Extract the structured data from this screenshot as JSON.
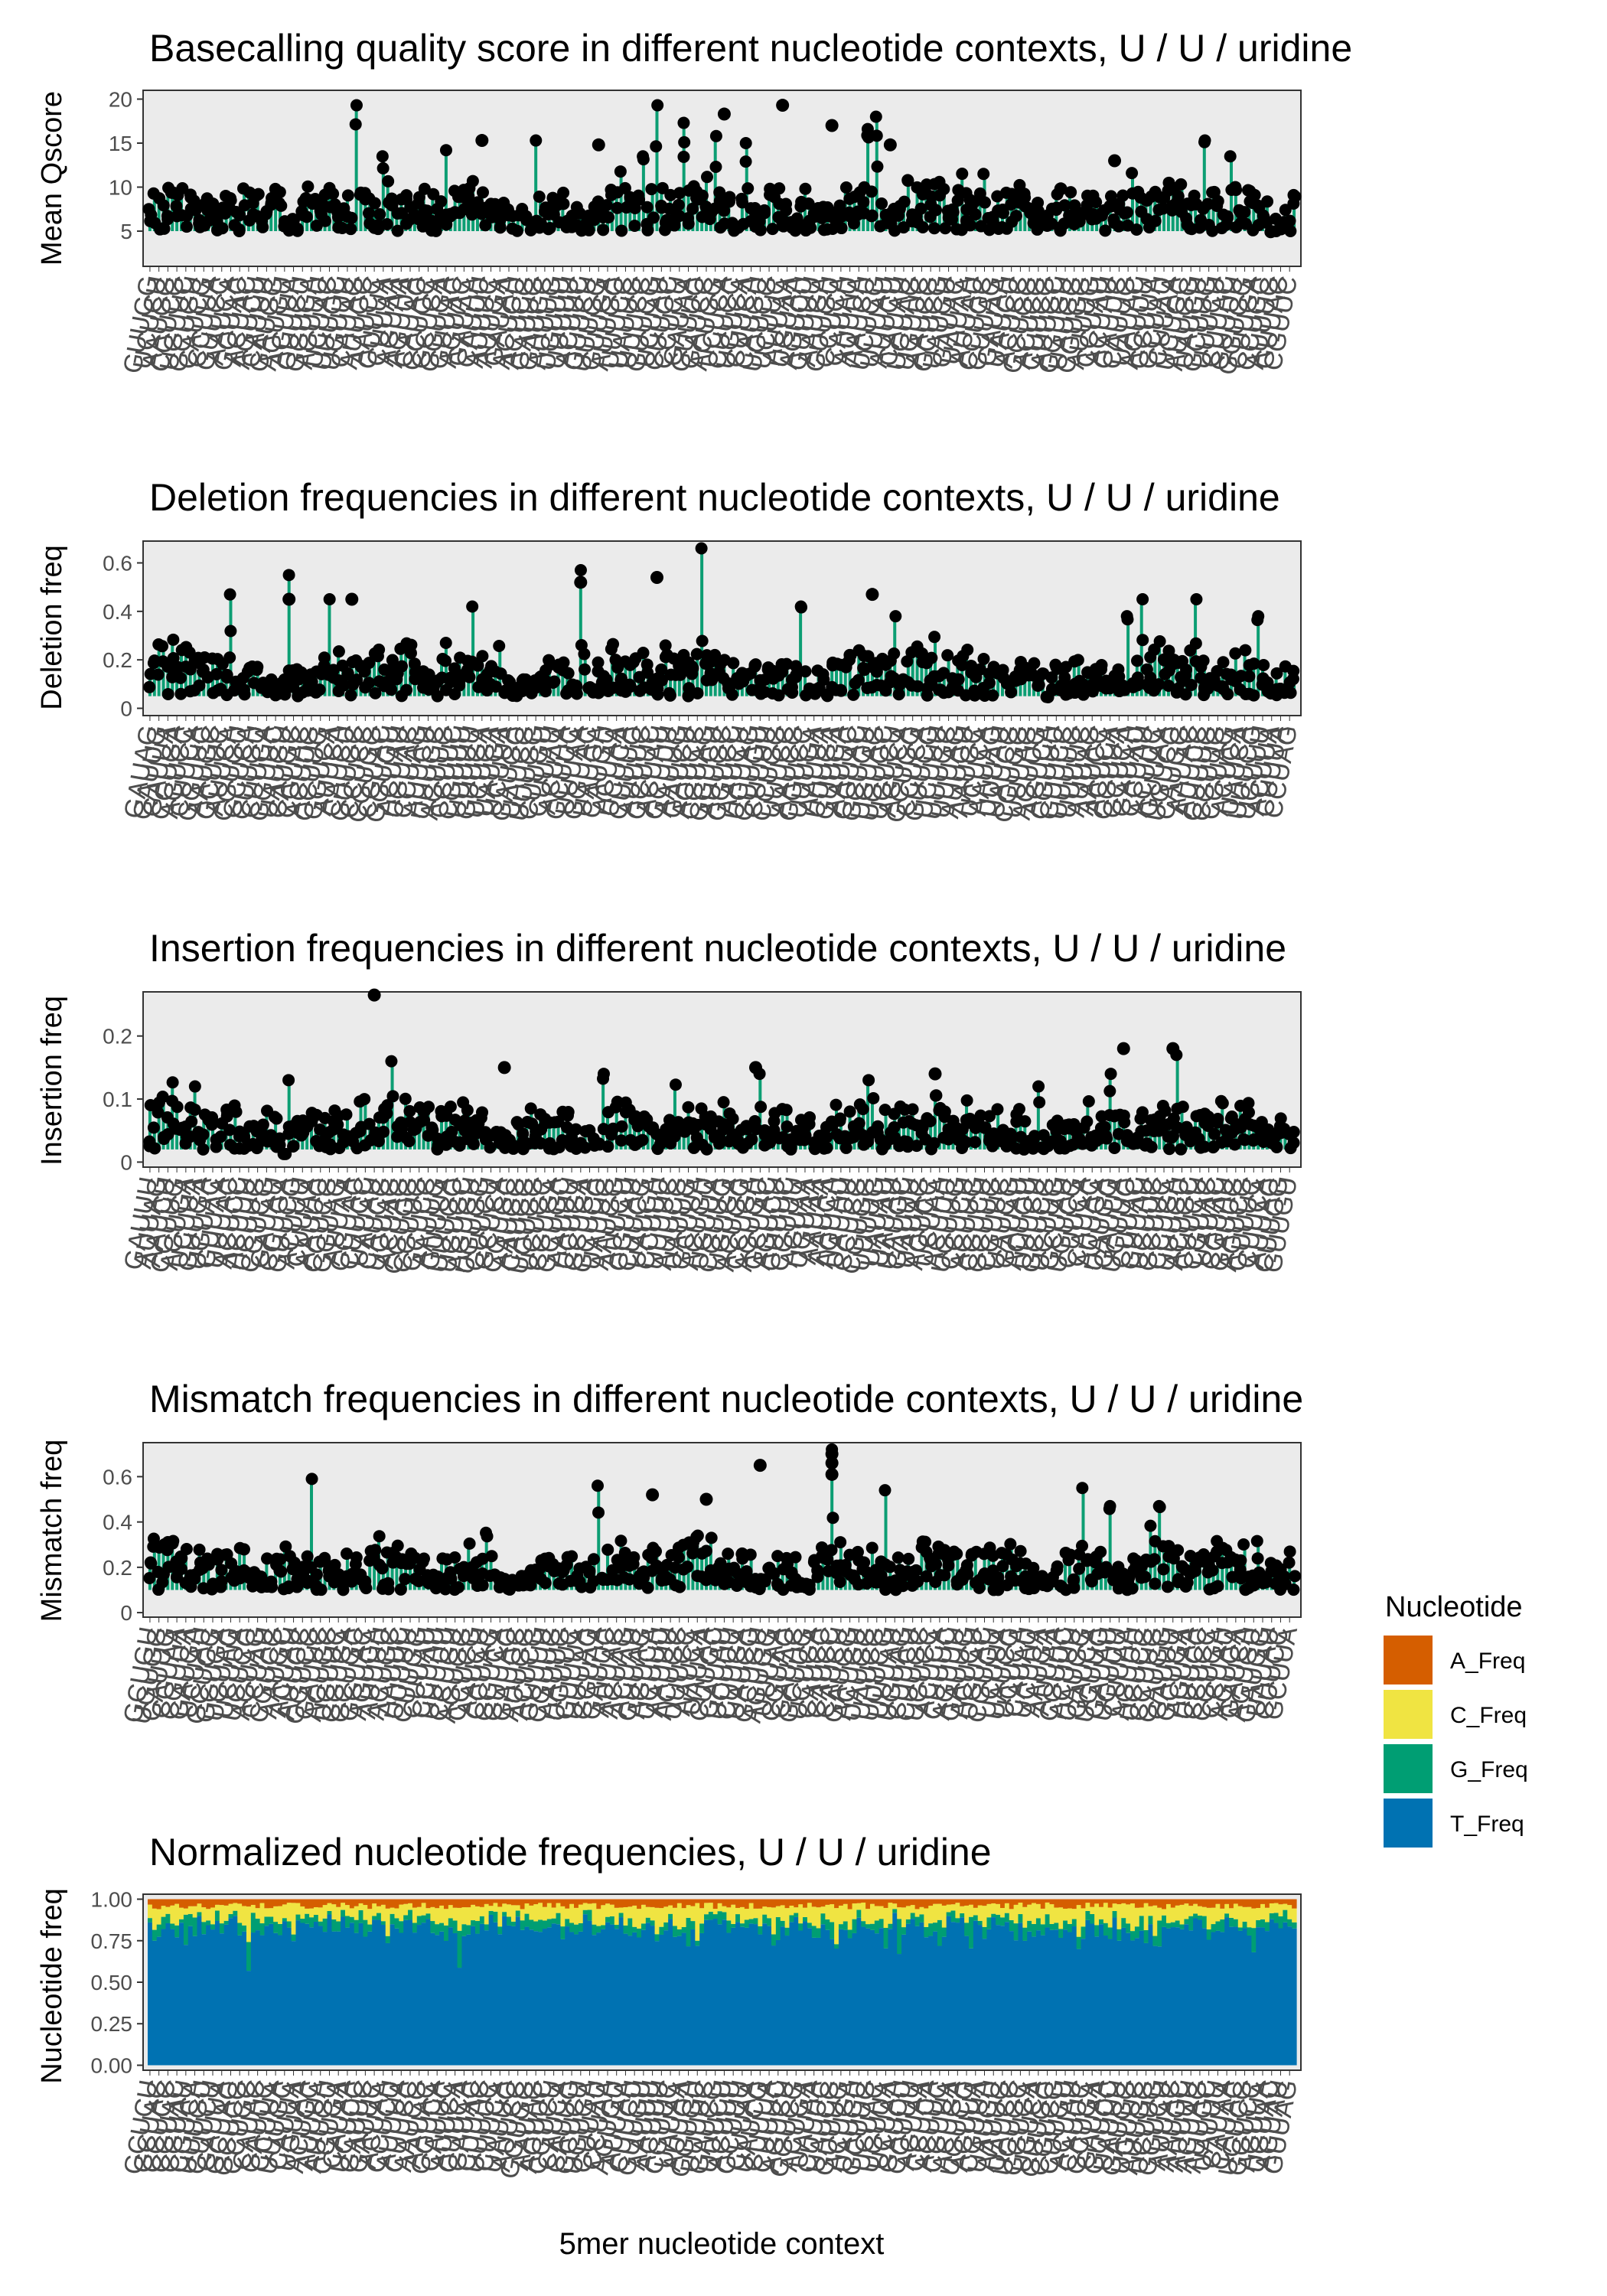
{
  "x_axis_label": "5mer nucleotide context",
  "colors": {
    "panel_bg": "#ebebeb",
    "lollipop_stem": "#0c9e73",
    "point": "#000000",
    "A_Freq": "#d55e00",
    "C_Freq": "#f0e442",
    "G_Freq": "#009e73",
    "T_Freq": "#0072b2"
  },
  "legend": {
    "title": "Nucleotide",
    "items": [
      {
        "label": "A_Freq",
        "color": "#d55e00"
      },
      {
        "label": "C_Freq",
        "color": "#f0e442"
      },
      {
        "label": "G_Freq",
        "color": "#009e73"
      },
      {
        "label": "T_Freq",
        "color": "#0072b2"
      }
    ]
  },
  "chart_data": [
    {
      "type": "lollipop",
      "title": "Basecalling quality score in different nucleotide contexts, U / U / uridine",
      "ylabel": "Mean Qscore",
      "xlabel": "",
      "ylim": [
        1,
        21
      ],
      "yticks": [
        5,
        10,
        15,
        20
      ],
      "n_contexts": 256,
      "baseline": 5,
      "highlights": [
        {
          "i": 46,
          "v": 19.3
        },
        {
          "i": 52,
          "v": 13.5
        },
        {
          "i": 66,
          "v": 14.2
        },
        {
          "i": 86,
          "v": 15.3
        },
        {
          "i": 110,
          "v": 13.5
        },
        {
          "i": 113,
          "v": 19.3
        },
        {
          "i": 119,
          "v": 17.3
        },
        {
          "i": 126,
          "v": 15.8
        },
        {
          "i": 133,
          "v": 15.0
        },
        {
          "i": 160,
          "v": 16.6
        },
        {
          "i": 162,
          "v": 18.0
        },
        {
          "i": 186,
          "v": 11.5
        },
        {
          "i": 219,
          "v": 11.6
        },
        {
          "i": 235,
          "v": 15.3
        },
        {
          "i": 241,
          "v": 13.5
        }
      ],
      "outliers": [
        {
          "i": 74,
          "v": 15.3
        },
        {
          "i": 100,
          "v": 14.8
        },
        {
          "i": 128,
          "v": 18.3
        },
        {
          "i": 141,
          "v": 19.3
        },
        {
          "i": 152,
          "v": 17.0
        },
        {
          "i": 165,
          "v": 14.8
        },
        {
          "i": 203,
          "v": 9.8
        },
        {
          "i": 215,
          "v": 13.0
        }
      ]
    },
    {
      "type": "lollipop",
      "title": "Deletion frequencies in different nucleotide contexts, U / U / uridine",
      "ylabel": "Deletion freq",
      "xlabel": "",
      "ylim": [
        -0.03,
        0.69
      ],
      "yticks": [
        0.0,
        0.2,
        0.4,
        0.6
      ],
      "n_contexts": 256,
      "baseline": 0.05,
      "highlights": [
        {
          "i": 18,
          "v": 0.47
        },
        {
          "i": 31,
          "v": 0.55
        },
        {
          "i": 40,
          "v": 0.45
        },
        {
          "i": 72,
          "v": 0.42
        },
        {
          "i": 96,
          "v": 0.57
        },
        {
          "i": 123,
          "v": 0.66
        },
        {
          "i": 145,
          "v": 0.42
        },
        {
          "i": 166,
          "v": 0.38
        },
        {
          "i": 218,
          "v": 0.38
        },
        {
          "i": 221,
          "v": 0.45
        },
        {
          "i": 233,
          "v": 0.45
        },
        {
          "i": 247,
          "v": 0.38
        }
      ],
      "outliers": [
        {
          "i": 96,
          "v": 0.52
        },
        {
          "i": 113,
          "v": 0.54
        },
        {
          "i": 161,
          "v": 0.47
        },
        {
          "i": 45,
          "v": 0.45
        },
        {
          "i": 31,
          "v": 0.45
        }
      ]
    },
    {
      "type": "lollipop",
      "title": "Insertion frequencies in different nucleotide contexts, U / U / uridine",
      "ylabel": "Insertion freq",
      "xlabel": "",
      "ylim": [
        -0.008,
        0.27
      ],
      "yticks": [
        0.0,
        0.1,
        0.2
      ],
      "n_contexts": 256,
      "baseline": 0.02,
      "highlights": [
        {
          "i": 10,
          "v": 0.12
        },
        {
          "i": 31,
          "v": 0.13
        },
        {
          "i": 54,
          "v": 0.16
        },
        {
          "i": 101,
          "v": 0.14
        },
        {
          "i": 136,
          "v": 0.14
        },
        {
          "i": 160,
          "v": 0.13
        },
        {
          "i": 198,
          "v": 0.12
        },
        {
          "i": 214,
          "v": 0.14
        },
        {
          "i": 229,
          "v": 0.17
        }
      ],
      "outliers": [
        {
          "i": 50,
          "v": 0.265
        },
        {
          "i": 217,
          "v": 0.18
        },
        {
          "i": 228,
          "v": 0.18
        },
        {
          "i": 79,
          "v": 0.15
        },
        {
          "i": 135,
          "v": 0.15
        },
        {
          "i": 175,
          "v": 0.14
        }
      ]
    },
    {
      "type": "lollipop",
      "title": "Mismatch frequencies in different nucleotide contexts, U / U / uridine",
      "ylabel": "Mismatch freq",
      "xlabel": "",
      "ylim": [
        -0.02,
        0.75
      ],
      "yticks": [
        0.0,
        0.2,
        0.4,
        0.6
      ],
      "n_contexts": 256,
      "baseline": 0.1,
      "highlights": [
        {
          "i": 36,
          "v": 0.59
        },
        {
          "i": 100,
          "v": 0.56
        },
        {
          "i": 152,
          "v": 0.72
        },
        {
          "i": 164,
          "v": 0.54
        },
        {
          "i": 208,
          "v": 0.55
        },
        {
          "i": 225,
          "v": 0.47
        },
        {
          "i": 214,
          "v": 0.47
        }
      ],
      "outliers": [
        {
          "i": 136,
          "v": 0.65
        },
        {
          "i": 152,
          "v": 0.7
        },
        {
          "i": 152,
          "v": 0.66
        },
        {
          "i": 152,
          "v": 0.61
        },
        {
          "i": 112,
          "v": 0.52
        },
        {
          "i": 124,
          "v": 0.5
        }
      ]
    },
    {
      "type": "bar",
      "stacked": true,
      "title": "Normalized nucleotide frequencies, U / U / uridine",
      "ylabel": "Nucleotide freq",
      "xlabel": "5mer nucleotide context",
      "ylim": [
        -0.03,
        1.03
      ],
      "yticks": [
        0.0,
        0.25,
        0.5,
        0.75,
        1.0
      ],
      "yticklabels": [
        "0.00",
        "0.25",
        "0.50",
        "0.75",
        "1.00"
      ],
      "n_contexts": 256,
      "series": [
        {
          "name": "A_Freq",
          "mean": 0.04
        },
        {
          "name": "C_Freq",
          "mean": 0.09
        },
        {
          "name": "G_Freq",
          "mean": 0.05
        },
        {
          "name": "T_Freq",
          "mean": 0.82
        }
      ]
    }
  ]
}
